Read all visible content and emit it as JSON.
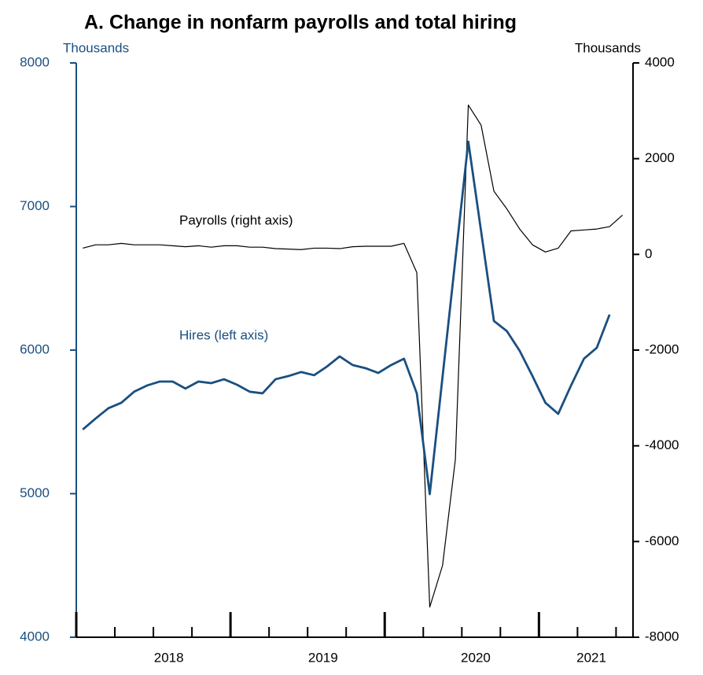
{
  "chart_data": {
    "type": "line",
    "title": "A. Change in nonfarm payrolls and total hiring",
    "y_label": "Thousands",
    "y2_label": "Thousands",
    "annotations": [
      "Payrolls (right axis)",
      "Hires (left axis)"
    ],
    "x": [
      2018.042,
      2018.125,
      2018.208,
      2018.292,
      2018.375,
      2018.458,
      2018.542,
      2018.625,
      2018.708,
      2018.792,
      2018.875,
      2018.958,
      2019.042,
      2019.125,
      2019.208,
      2019.292,
      2019.375,
      2019.458,
      2019.542,
      2019.625,
      2019.708,
      2019.792,
      2019.875,
      2019.958,
      2020.042,
      2020.125,
      2020.208,
      2020.292,
      2020.375,
      2020.458,
      2020.542,
      2020.625,
      2020.708,
      2020.792,
      2020.875,
      2020.958,
      2021.042,
      2021.125,
      2021.208,
      2021.292,
      2021.375,
      2021.458,
      2021.542
    ],
    "xlim": [
      2018,
      2021.61
    ],
    "xticks": [
      2018,
      2019,
      2020,
      2021
    ],
    "xminor_ticks": [
      2018.25,
      2018.5,
      2018.75,
      2019.25,
      2019.5,
      2019.75,
      2020.25,
      2020.5,
      2020.75,
      2021.25,
      2021.5
    ],
    "xtick_labels": [
      {
        "value": 2018.6,
        "label": "2018"
      },
      {
        "value": 2019.6,
        "label": "2019"
      },
      {
        "value": 2020.59,
        "label": "2020"
      },
      {
        "value": 2021.34,
        "label": "2021"
      }
    ],
    "ylim": [
      4000,
      8000
    ],
    "yticks": [
      4000,
      5000,
      6000,
      7000,
      8000
    ],
    "y2lim": [
      -8000,
      4000
    ],
    "y2ticks": [
      -8000,
      -6000,
      -4000,
      -2000,
      0,
      2000,
      4000
    ],
    "series": [
      {
        "name": "Hires",
        "color": "#1a4f80",
        "axis": "y",
        "values": [
          5447,
          5523,
          5595,
          5633,
          5710,
          5753,
          5781,
          5781,
          5732,
          5781,
          5770,
          5797,
          5759,
          5710,
          5699,
          5797,
          5819,
          5847,
          5825,
          5885,
          5956,
          5896,
          5874,
          5841,
          5896,
          5940,
          5699,
          4997,
          5814,
          6630,
          7452,
          6827,
          6203,
          6132,
          5995,
          5819,
          5633,
          5556,
          5753,
          5940,
          6016,
          6247,
          null
        ]
      },
      {
        "name": "Payrolls",
        "color": "#000000",
        "axis": "y2",
        "values": [
          130,
          200,
          200,
          230,
          200,
          200,
          200,
          180,
          160,
          180,
          150,
          180,
          180,
          150,
          150,
          120,
          110,
          100,
          130,
          130,
          120,
          160,
          170,
          170,
          170,
          230,
          -380,
          -7370,
          -6500,
          -4290,
          3120,
          2700,
          1320,
          950,
          530,
          200,
          50,
          130,
          490,
          510,
          530,
          580,
          820
        ]
      }
    ]
  }
}
